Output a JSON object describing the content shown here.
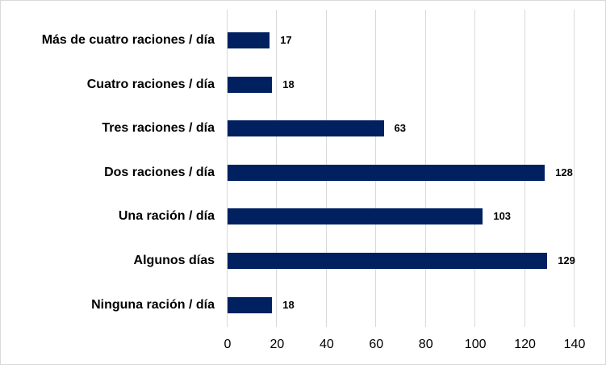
{
  "chart_data": {
    "type": "bar",
    "orientation": "horizontal",
    "title": "",
    "xlabel": "",
    "ylabel": "",
    "categories": [
      "Más de cuatro raciones / día",
      "Cuatro raciones / día",
      "Tres raciones / día",
      "Dos raciones / día",
      "Una ración / día",
      "Algunos días",
      "Ninguna ración / día"
    ],
    "values": [
      17,
      18,
      63,
      128,
      103,
      129,
      18
    ],
    "xlim": [
      0,
      140
    ],
    "xticks": [
      "0",
      "20",
      "40",
      "60",
      "80",
      "100",
      "120",
      "140"
    ],
    "grid": "vertical",
    "legend": "none",
    "data_labels": true,
    "bar_color": "#002060"
  }
}
